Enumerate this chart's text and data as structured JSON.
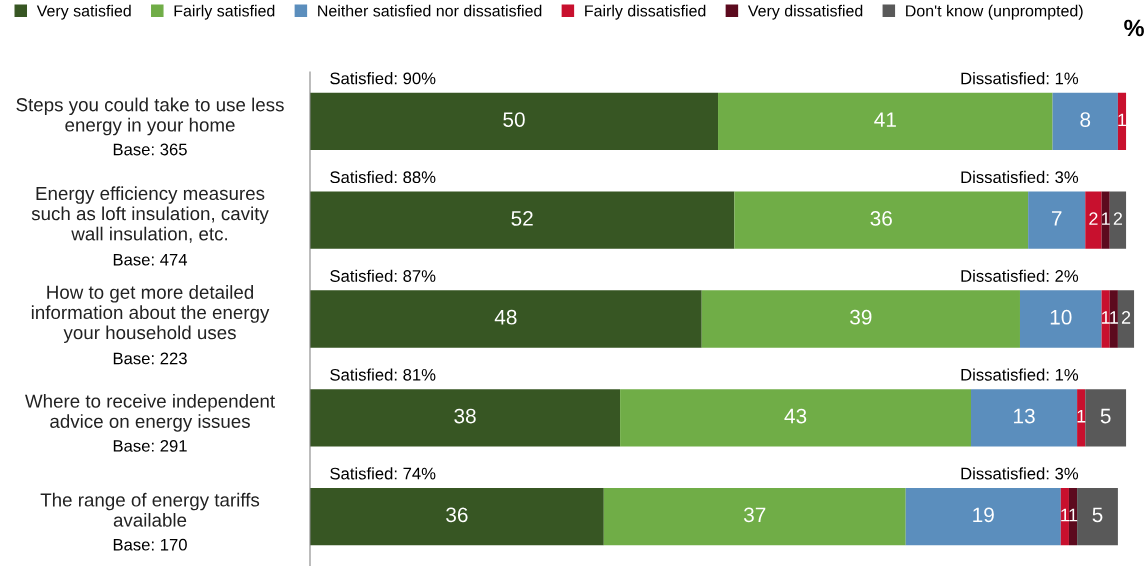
{
  "chart_data": {
    "type": "bar",
    "orientation": "horizontal",
    "stacked": true,
    "data_labels": true,
    "legend": "top left",
    "xlabel": "%",
    "xlim": [
      0,
      101
    ],
    "categories": [
      "Steps you could take to use less\nenergy in your home",
      "Energy efficiency measures\nsuch as loft insulation, cavity\nwall insulation, etc.",
      "How to get more detailed\ninformation about the energy\nyour household uses",
      "Where to receive independent\nadvice on energy issues",
      "The range of energy tariffs\navailable"
    ],
    "series": [
      {
        "name": "Very satisfied",
        "color": "#375623",
        "values": [
          50,
          52,
          48,
          38,
          36
        ]
      },
      {
        "name": "Fairly satisfied",
        "color": "#70ad47",
        "values": [
          41,
          36,
          39,
          43,
          37
        ]
      },
      {
        "name": "Neither satisfied nor dissatisfied",
        "color": "#5b8ebd",
        "values": [
          8,
          7,
          10,
          13,
          19
        ]
      },
      {
        "name": "Fairly dissatisfied",
        "color": "#c8102e",
        "values": [
          1,
          2,
          1,
          1,
          1
        ]
      },
      {
        "name": "Very dissatisfied",
        "color": "#5c0a1e",
        "values": [
          null,
          1,
          1,
          null,
          1
        ]
      },
      {
        "name": "Don't know (unprompted)",
        "color": "#595959",
        "values": [
          null,
          2,
          2,
          5,
          5
        ]
      }
    ],
    "annotations": [
      "Satisfied: 90%",
      "Dissatisfied: 1%",
      "Base: 365",
      "Satisfied: 88%",
      "Dissatisfied: 3%",
      "Base: 474",
      "Satisfied: 87%",
      "Dissatisfied: 2%",
      "Base: 223",
      "Satisfied: 81%",
      "Dissatisfied: 1%",
      "Base: 291",
      "Satisfied: 74%",
      "Dissatisfied: 3%",
      "Base: 170"
    ]
  }
}
